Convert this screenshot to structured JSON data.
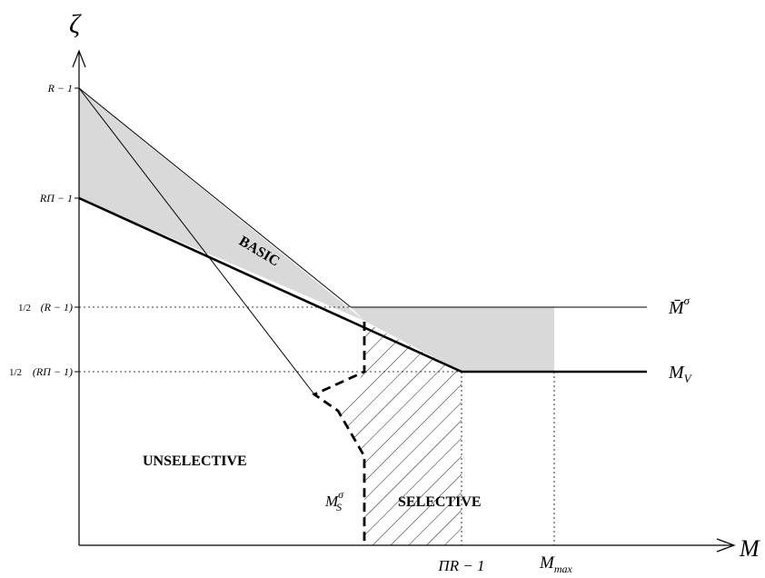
{
  "axes": {
    "y_label": "ζ",
    "x_label": "M"
  },
  "y_ticks": {
    "r_minus_1": "R − 1",
    "r_pi_minus_1": "RΠ − 1",
    "half_r_minus_1_frac": "1/2",
    "half_r_minus_1_rest": "(R − 1)",
    "half_rpi_minus_1_frac": "1/2",
    "half_rpi_minus_1_rest": "(RΠ − 1)"
  },
  "x_ticks": {
    "pi_r_minus_1": "ΠR − 1",
    "m_max_base": "M",
    "m_max_sub": "max"
  },
  "curve_labels": {
    "m_bar_sigma_base": "M̄",
    "m_bar_sigma_sup": "σ",
    "m_v_base": "M",
    "m_v_sub": "V",
    "m_s_sigma_base": "M",
    "m_s_sigma_sub": "S",
    "m_s_sigma_sup": "σ"
  },
  "regions": {
    "basic": "BASIC",
    "unselective": "UNSELECTIVE",
    "selective": "SELECTIVE"
  },
  "colors": {
    "shade": "#d9d9d9",
    "line": "#000000"
  }
}
